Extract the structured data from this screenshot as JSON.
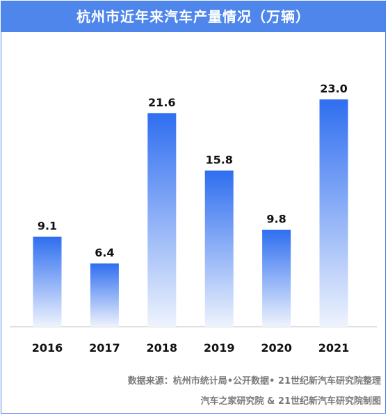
{
  "chart_data": {
    "type": "bar",
    "title": "杭州市近年来汽车产量情况（万辆）",
    "categories": [
      "2016",
      "2017",
      "2018",
      "2019",
      "2020",
      "2021"
    ],
    "values": [
      9.1,
      6.4,
      21.6,
      15.8,
      9.8,
      23.0
    ],
    "value_labels": [
      "9.1",
      "6.4",
      "21.6",
      "15.8",
      "9.8",
      "23.0"
    ],
    "xlabel": "",
    "ylabel": "",
    "ylim": [
      0,
      25
    ],
    "grid": false,
    "legend": "none"
  },
  "colors": {
    "title_bg": "#4e86ec",
    "bar_top": "#2f6ef0",
    "bar_bottom": "#eef3fd",
    "axis": "#bfbfbf",
    "source_text": "#7a7a7a"
  },
  "source": {
    "line1": "数据来源：杭州市统计局•公开数据• 21世纪新汽车研究院整理",
    "line2": "汽车之家研究院 & 21世纪新汽车研究院制图"
  }
}
